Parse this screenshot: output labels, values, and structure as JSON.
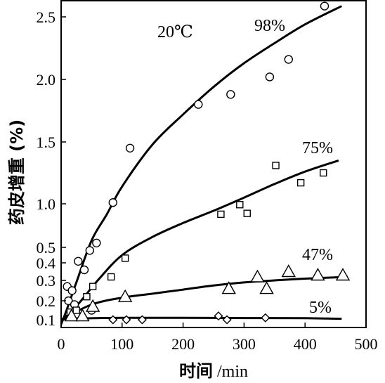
{
  "chart_data": {
    "type": "scatter",
    "title": "",
    "xlabel": "时间 /min",
    "ylabel": "药皮增重 (%)",
    "xlim": [
      0,
      500
    ],
    "ylim": [
      0.05,
      2.62
    ],
    "grid": false,
    "x_ticks": [
      "0",
      "100",
      "200",
      "300",
      "400",
      "500"
    ],
    "y_ticks": [
      "0.1",
      "0.2",
      "0.3",
      "0.4",
      "0.5",
      "1.0",
      "1.5",
      "2.0",
      "2.5"
    ],
    "annotations": [
      "20℃",
      "98%",
      "75%",
      "47%",
      "5%"
    ],
    "series": [
      {
        "name": "98%",
        "marker": "circle",
        "points": [
          [
            10,
            0.27
          ],
          [
            12,
            0.2
          ],
          [
            18,
            0.25
          ],
          [
            22,
            0.18
          ],
          [
            28,
            0.41
          ],
          [
            38,
            0.36
          ],
          [
            47,
            0.48
          ],
          [
            50,
            0.15
          ],
          [
            58,
            0.55
          ],
          [
            85,
            1.01
          ],
          [
            113,
            1.45
          ],
          [
            225,
            1.8
          ],
          [
            278,
            1.88
          ],
          [
            342,
            2.02
          ],
          [
            373,
            2.16
          ],
          [
            432,
            2.58
          ]
        ],
        "curve": [
          [
            0,
            0.07
          ],
          [
            10,
            0.16
          ],
          [
            25,
            0.29
          ],
          [
            50,
            0.58
          ],
          [
            75,
            0.88
          ],
          [
            100,
            1.14
          ],
          [
            150,
            1.48
          ],
          [
            200,
            1.72
          ],
          [
            250,
            1.94
          ],
          [
            300,
            2.13
          ],
          [
            350,
            2.29
          ],
          [
            400,
            2.44
          ],
          [
            460,
            2.58
          ]
        ]
      },
      {
        "name": "75%",
        "marker": "square",
        "points": [
          [
            15,
            0.14
          ],
          [
            25,
            0.15
          ],
          [
            42,
            0.22
          ],
          [
            52,
            0.27
          ],
          [
            82,
            0.32
          ],
          [
            105,
            0.43
          ],
          [
            262,
            0.88
          ],
          [
            293,
            0.99
          ],
          [
            305,
            0.89
          ],
          [
            352,
            1.31
          ],
          [
            393,
            1.17
          ],
          [
            430,
            1.25
          ]
        ],
        "curve": [
          [
            0,
            0.09
          ],
          [
            30,
            0.19
          ],
          [
            60,
            0.3
          ],
          [
            100,
            0.45
          ],
          [
            150,
            0.62
          ],
          [
            200,
            0.78
          ],
          [
            250,
            0.92
          ],
          [
            300,
            1.05
          ],
          [
            350,
            1.16
          ],
          [
            400,
            1.26
          ],
          [
            455,
            1.35
          ]
        ]
      },
      {
        "name": "47%",
        "marker": "triangle",
        "points": [
          [
            17,
            0.12
          ],
          [
            35,
            0.12
          ],
          [
            52,
            0.17
          ],
          [
            105,
            0.22
          ],
          [
            275,
            0.26
          ],
          [
            322,
            0.32
          ],
          [
            337,
            0.26
          ],
          [
            373,
            0.35
          ],
          [
            421,
            0.33
          ],
          [
            462,
            0.33
          ]
        ],
        "curve": [
          [
            0,
            0.1
          ],
          [
            50,
            0.18
          ],
          [
            100,
            0.215
          ],
          [
            150,
            0.235
          ],
          [
            200,
            0.255
          ],
          [
            250,
            0.275
          ],
          [
            300,
            0.29
          ],
          [
            350,
            0.3
          ],
          [
            400,
            0.31
          ],
          [
            470,
            0.32
          ]
        ]
      },
      {
        "name": "5%",
        "marker": "diamond",
        "points": [
          [
            85,
            0.1
          ],
          [
            107,
            0.1
          ],
          [
            133,
            0.1
          ],
          [
            258,
            0.12
          ],
          [
            272,
            0.1
          ],
          [
            335,
            0.11
          ]
        ],
        "curve": [
          [
            0,
            0.105
          ],
          [
            100,
            0.11
          ],
          [
            200,
            0.11
          ],
          [
            300,
            0.109
          ],
          [
            400,
            0.108
          ],
          [
            460,
            0.105
          ]
        ]
      }
    ]
  }
}
